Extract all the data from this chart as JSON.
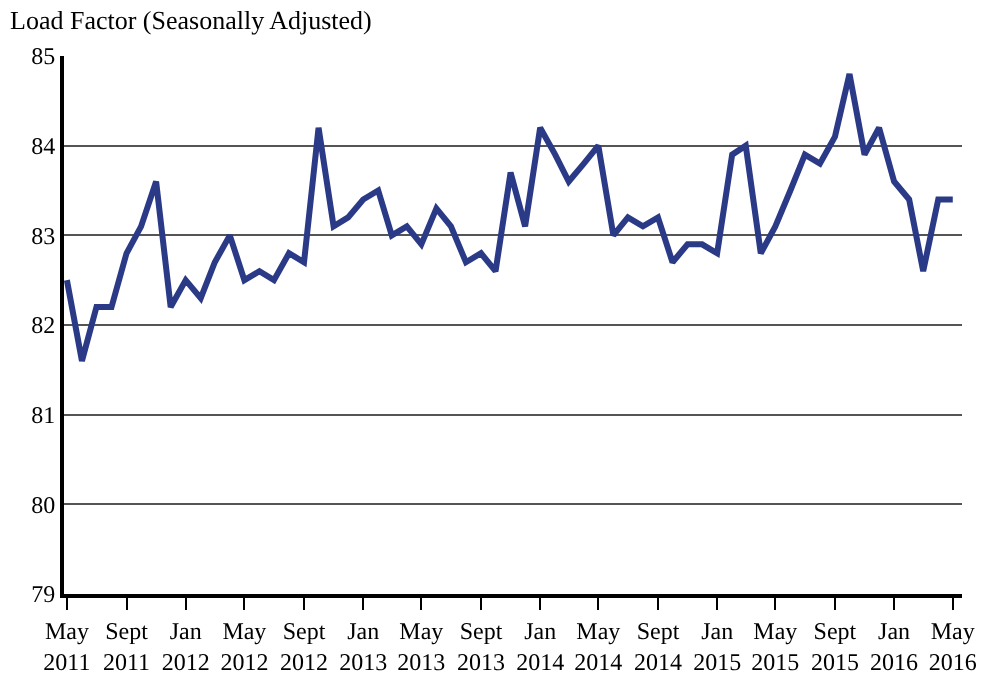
{
  "chart_data": {
    "type": "line",
    "title": "Load Factor (Seasonally Adjusted)",
    "x": [
      "2011-05",
      "2011-06",
      "2011-07",
      "2011-08",
      "2011-09",
      "2011-10",
      "2011-11",
      "2011-12",
      "2012-01",
      "2012-02",
      "2012-03",
      "2012-04",
      "2012-05",
      "2012-06",
      "2012-07",
      "2012-08",
      "2012-09",
      "2012-10",
      "2012-11",
      "2012-12",
      "2013-01",
      "2013-02",
      "2013-03",
      "2013-04",
      "2013-05",
      "2013-06",
      "2013-07",
      "2013-08",
      "2013-09",
      "2013-10",
      "2013-11",
      "2013-12",
      "2014-01",
      "2014-02",
      "2014-03",
      "2014-04",
      "2014-05",
      "2014-06",
      "2014-07",
      "2014-08",
      "2014-09",
      "2014-10",
      "2014-11",
      "2014-12",
      "2015-01",
      "2015-02",
      "2015-03",
      "2015-04",
      "2015-05",
      "2015-06",
      "2015-07",
      "2015-08",
      "2015-09",
      "2015-10",
      "2015-11",
      "2015-12",
      "2016-01",
      "2016-02",
      "2016-03",
      "2016-04",
      "2016-05"
    ],
    "series": [
      {
        "color": "#2b3a87",
        "values": [
          82.5,
          81.6,
          82.2,
          82.2,
          82.8,
          83.1,
          83.6,
          82.2,
          82.5,
          82.3,
          82.7,
          83.0,
          82.5,
          82.6,
          82.5,
          82.8,
          82.7,
          84.2,
          83.1,
          83.2,
          83.4,
          83.5,
          83.0,
          83.1,
          82.9,
          83.3,
          83.1,
          82.7,
          82.8,
          82.6,
          83.7,
          83.1,
          84.2,
          83.9,
          83.6,
          83.8,
          84.0,
          83.0,
          83.2,
          83.1,
          83.2,
          82.7,
          82.9,
          82.9,
          82.8,
          83.9,
          84.0,
          82.8,
          83.1,
          83.5,
          83.9,
          83.8,
          84.1,
          84.8,
          83.9,
          84.2,
          83.6,
          83.4,
          82.6,
          83.4,
          83.4
        ]
      }
    ],
    "xlim": [
      "2011-04-25",
      "2016-05-20"
    ],
    "xticks": [
      {
        "value": "2011-05",
        "label": "May\n2011"
      },
      {
        "value": "2011-09",
        "label": "Sept\n2011"
      },
      {
        "value": "2012-01",
        "label": "Jan\n2012"
      },
      {
        "value": "2012-05",
        "label": "May\n2012"
      },
      {
        "value": "2012-09",
        "label": "Sept\n2012"
      },
      {
        "value": "2013-01",
        "label": "Jan\n2013"
      },
      {
        "value": "2013-05",
        "label": "May\n2013"
      },
      {
        "value": "2013-09",
        "label": "Sept\n2013"
      },
      {
        "value": "2014-01",
        "label": "Jan\n2014"
      },
      {
        "value": "2014-05",
        "label": "May\n2014"
      },
      {
        "value": "2014-09",
        "label": "Sept\n2014"
      },
      {
        "value": "2015-01",
        "label": "Jan\n2015"
      },
      {
        "value": "2015-05",
        "label": "May\n2015"
      },
      {
        "value": "2015-09",
        "label": "Sept\n2015"
      },
      {
        "value": "2016-01",
        "label": "Jan\n2016"
      },
      {
        "value": "2016-05",
        "label": "May\n2016"
      }
    ],
    "ylim": [
      79,
      85
    ],
    "yticks": [
      79,
      80,
      81,
      82,
      83,
      84,
      85
    ],
    "grid": "y",
    "marker": "none",
    "line_style": "solid"
  }
}
